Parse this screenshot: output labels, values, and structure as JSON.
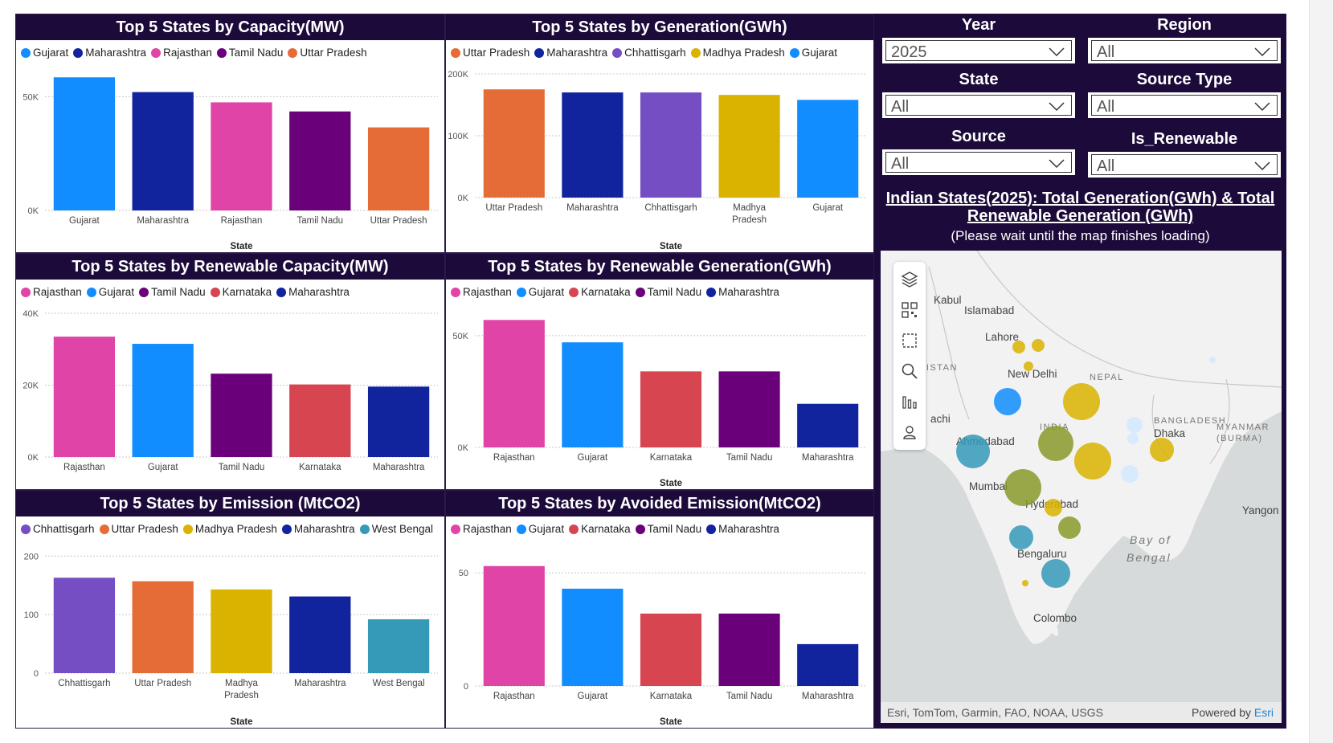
{
  "palette": {
    "Gujarat": "#118DFF",
    "Maharashtra": "#12239E",
    "Rajasthan": "#E044A7",
    "Tamil Nadu": "#6B007B",
    "Uttar Pradesh": "#E66C37",
    "Chhattisgarh": "#744EC2",
    "Madhya Pradesh": "#D9B300",
    "Karnataka": "#D64550",
    "West Bengal": "#3599B8"
  },
  "charts": [
    {
      "title": "Top 5 States by Capacity(MW)",
      "chart_data": {
        "type": "bar",
        "categories": [
          "Gujarat",
          "Maharashtra",
          "Rajasthan",
          "Tamil Nadu",
          "Uttar Pradesh"
        ],
        "values": [
          58500,
          52000,
          47500,
          43500,
          36500
        ],
        "ylim": [
          0,
          60000
        ],
        "yticks": [
          "0K",
          "50K"
        ],
        "ytick_values": [
          0,
          50000
        ],
        "xlabel": "State",
        "ylabel": ""
      }
    },
    {
      "title": "Top 5 States by Generation(GWh)",
      "chart_data": {
        "type": "bar",
        "categories": [
          "Uttar Pradesh",
          "Maharashtra",
          "Chhattisgarh",
          "Madhya Pradesh",
          "Gujarat"
        ],
        "values": [
          175000,
          170000,
          170000,
          166000,
          158000
        ],
        "ylim": [
          0,
          200000
        ],
        "yticks": [
          "0K",
          "100K",
          "200K"
        ],
        "ytick_values": [
          0,
          100000,
          200000
        ],
        "xlabel": "State",
        "ylabel": ""
      }
    },
    {
      "title": "Top 5 States by Renewable Capacity(MW)",
      "chart_data": {
        "type": "bar",
        "categories": [
          "Rajasthan",
          "Gujarat",
          "Tamil Nadu",
          "Karnataka",
          "Maharashtra"
        ],
        "values": [
          33500,
          31500,
          23200,
          20200,
          19600
        ],
        "ylim": [
          0,
          40000
        ],
        "yticks": [
          "0K",
          "20K",
          "40K"
        ],
        "ytick_values": [
          0,
          20000,
          40000
        ],
        "xlabel": "",
        "ylabel": ""
      }
    },
    {
      "title": "Top 5 States by Renewable Generation(GWh)",
      "chart_data": {
        "type": "bar",
        "categories": [
          "Rajasthan",
          "Gujarat",
          "Karnataka",
          "Tamil Nadu",
          "Maharashtra"
        ],
        "values": [
          57000,
          47000,
          34000,
          34000,
          19500
        ],
        "ylim": [
          0,
          60000
        ],
        "yticks": [
          "0K",
          "50K"
        ],
        "ytick_values": [
          0,
          50000
        ],
        "xlabel": "State",
        "ylabel": ""
      }
    },
    {
      "title": "Top 5 States by Emission (MtCO2)",
      "chart_data": {
        "type": "bar",
        "categories": [
          "Chhattisgarh",
          "Uttar Pradesh",
          "Madhya Pradesh",
          "Maharashtra",
          "West Bengal"
        ],
        "values": [
          163,
          157,
          143,
          131,
          92
        ],
        "ylim": [
          0,
          210
        ],
        "yticks": [
          "0",
          "100",
          "200"
        ],
        "ytick_values": [
          0,
          100,
          200
        ],
        "xlabel": "State",
        "ylabel": ""
      }
    },
    {
      "title": "Top 5 States by Avoided Emission(MtCO2)",
      "chart_data": {
        "type": "bar",
        "categories": [
          "Rajasthan",
          "Gujarat",
          "Karnataka",
          "Tamil Nadu",
          "Maharashtra"
        ],
        "values": [
          53,
          43,
          32,
          32,
          18.5
        ],
        "ylim": [
          0,
          60
        ],
        "yticks": [
          "0",
          "50"
        ],
        "ytick_values": [
          0,
          50
        ],
        "xlabel": "State",
        "ylabel": ""
      }
    }
  ],
  "filters": {
    "year": {
      "label": "Year",
      "value": "2025"
    },
    "region": {
      "label": "Region",
      "value": "All"
    },
    "state": {
      "label": "State",
      "value": "All"
    },
    "source_type": {
      "label": "Source Type",
      "value": "All"
    },
    "source": {
      "label": "Source",
      "value": "All"
    },
    "is_renewable": {
      "label": "Is_Renewable",
      "value": "All"
    }
  },
  "map": {
    "title": "Indian States(2025): Total Generation(GWh) & Total Renewable Generation (GWh)",
    "subtitle": "(Please wait until the map finishes loading)",
    "attribution": "Esri, TomTom, Garmin, FAO, NOAA, USGS",
    "powered_by": "Powered by",
    "powered_by_link": "Esri",
    "places": [
      "Kabul",
      "Islamabad",
      "Lahore",
      "KISTAN",
      "New Delhi",
      "NEPAL",
      "BANGLADESH",
      "Dhaka",
      "MYANMAR",
      "(BURMA)",
      "INDIA",
      "achi",
      "Ahmedabad",
      "Mumbai",
      "Hyderabad",
      "Yangon",
      "Bay of",
      "Bengal",
      "Bengaluru",
      "Colombo"
    ],
    "tools": [
      "layers-icon",
      "qr-select-icon",
      "rect-select-icon",
      "search-icon",
      "bar-chart-icon",
      "pin-icon"
    ]
  }
}
